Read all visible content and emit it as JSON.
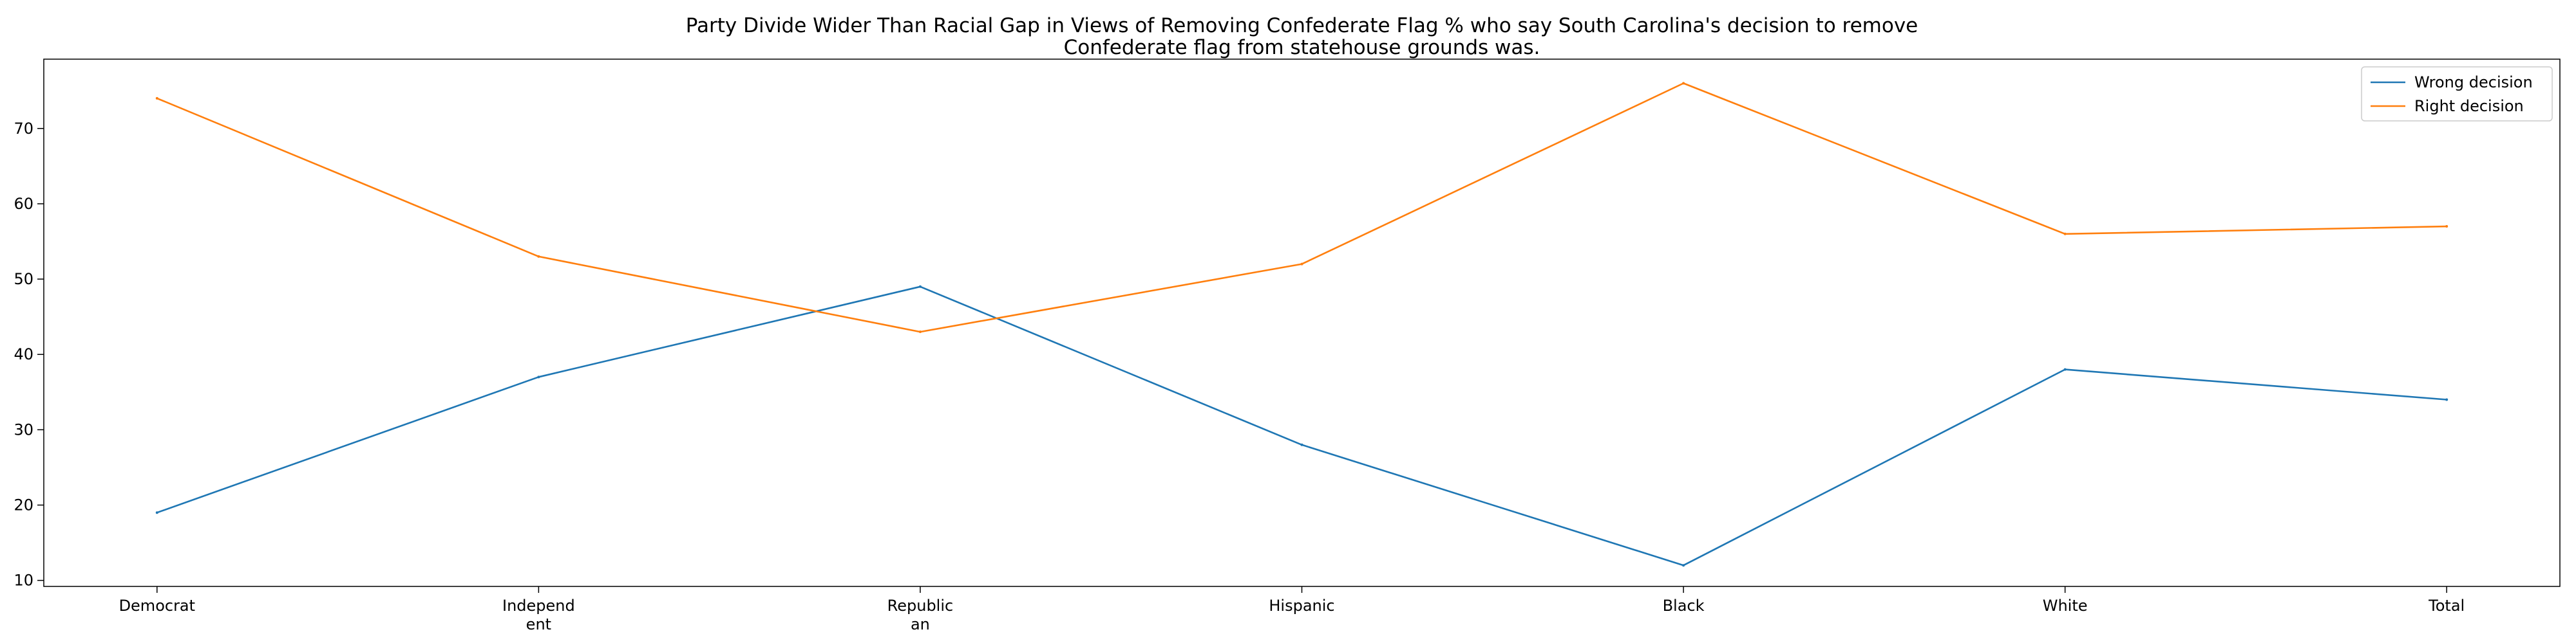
{
  "chart_data": {
    "type": "line",
    "title_lines": [
      "Party Divide Wider Than Racial Gap in Views of Removing Confederate Flag % who say South Carolina's decision to remove",
      "Confederate flag from statehouse grounds was."
    ],
    "xlabel": "",
    "ylabel": "",
    "categories": [
      [
        "Democrat"
      ],
      [
        "Independ",
        "ent"
      ],
      [
        "Republic",
        "an"
      ],
      [
        "Hispanic"
      ],
      [
        "Black"
      ],
      [
        "White"
      ],
      [
        "Total"
      ]
    ],
    "series": [
      {
        "name": "Wrong decision",
        "color": "#1f77b4",
        "values": [
          19,
          37,
          49,
          28,
          12,
          38,
          34
        ]
      },
      {
        "name": "Right decision",
        "color": "#ff7f0e",
        "values": [
          74,
          53,
          43,
          52,
          76,
          56,
          57
        ]
      }
    ],
    "ylim": [
      9.2,
      79.2
    ],
    "yticks": [
      10,
      20,
      30,
      40,
      50,
      60,
      70
    ],
    "grid": false,
    "legend_position": "upper right"
  }
}
